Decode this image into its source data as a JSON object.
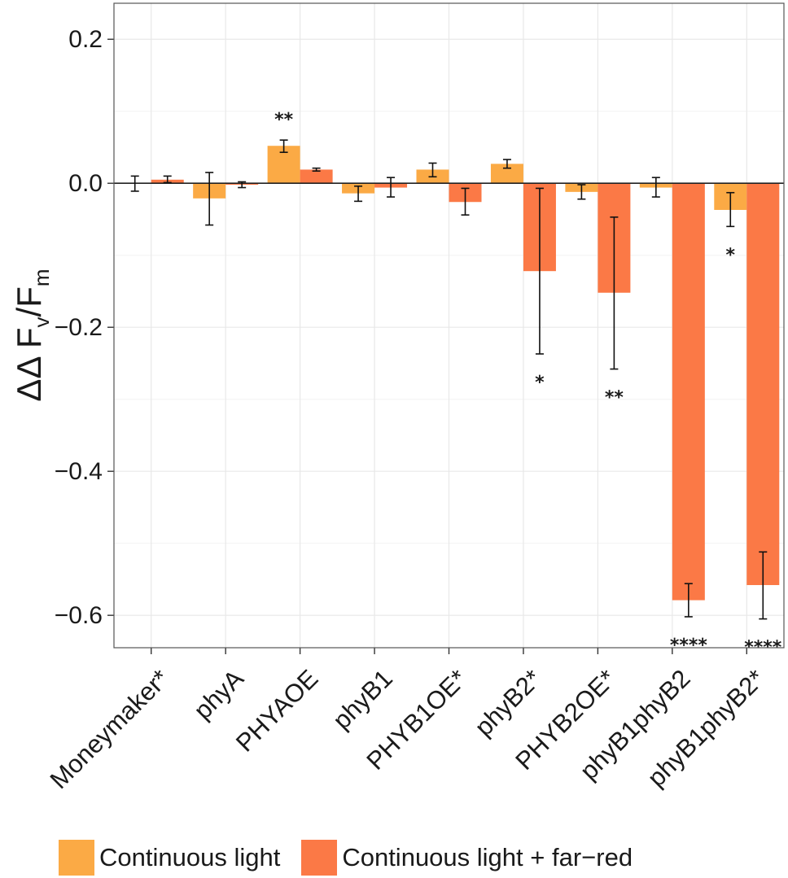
{
  "chart_data": {
    "type": "bar",
    "title": "",
    "xlabel": "",
    "ylabel": {
      "main": "ΔΔ F",
      "sub_v": "v",
      "slash": "/F",
      "sub_m": "m"
    },
    "ylim": [
      -0.645,
      0.25
    ],
    "yticks": [
      0.2,
      0.0,
      -0.2,
      -0.4,
      -0.6
    ],
    "ytick_labels": [
      "0.2",
      "0.0",
      "−0.2",
      "−0.4",
      "−0.6"
    ],
    "categories": [
      "Moneymaker*",
      "phyA",
      "PHYAOE",
      "phyB1",
      "PHYB1OE*",
      "phyB2*",
      "PHYB2OE*",
      "phyB1phyB2",
      "phyB1phyB2*"
    ],
    "series": [
      {
        "name": "Continuous light",
        "color": "#FBAA45",
        "values": [
          0.0,
          -0.021,
          0.052,
          -0.014,
          0.019,
          0.027,
          -0.012,
          -0.006,
          -0.037
        ],
        "err_low": [
          -0.011,
          -0.058,
          0.043,
          -0.025,
          0.009,
          0.021,
          -0.022,
          -0.019,
          -0.06
        ],
        "err_high": [
          0.01,
          0.015,
          0.06,
          -0.004,
          0.028,
          0.033,
          -0.002,
          0.008,
          -0.013
        ],
        "significance": [
          "",
          "",
          "**",
          "",
          "",
          "",
          "",
          "",
          "*"
        ]
      },
      {
        "name": "Continuous light + far−red",
        "color": "#FB7946",
        "values": [
          0.005,
          -0.002,
          0.019,
          -0.006,
          -0.026,
          -0.122,
          -0.152,
          -0.579,
          -0.558
        ],
        "err_low": [
          0.001,
          -0.006,
          0.017,
          -0.019,
          -0.044,
          -0.237,
          -0.258,
          -0.602,
          -0.605
        ],
        "err_high": [
          0.01,
          0.002,
          0.021,
          0.008,
          -0.007,
          -0.007,
          -0.047,
          -0.556,
          -0.512
        ],
        "significance": [
          "",
          "",
          "",
          "",
          "",
          "*",
          "**",
          "****",
          "****"
        ]
      }
    ],
    "legend_position": "bottom",
    "grid": true
  }
}
